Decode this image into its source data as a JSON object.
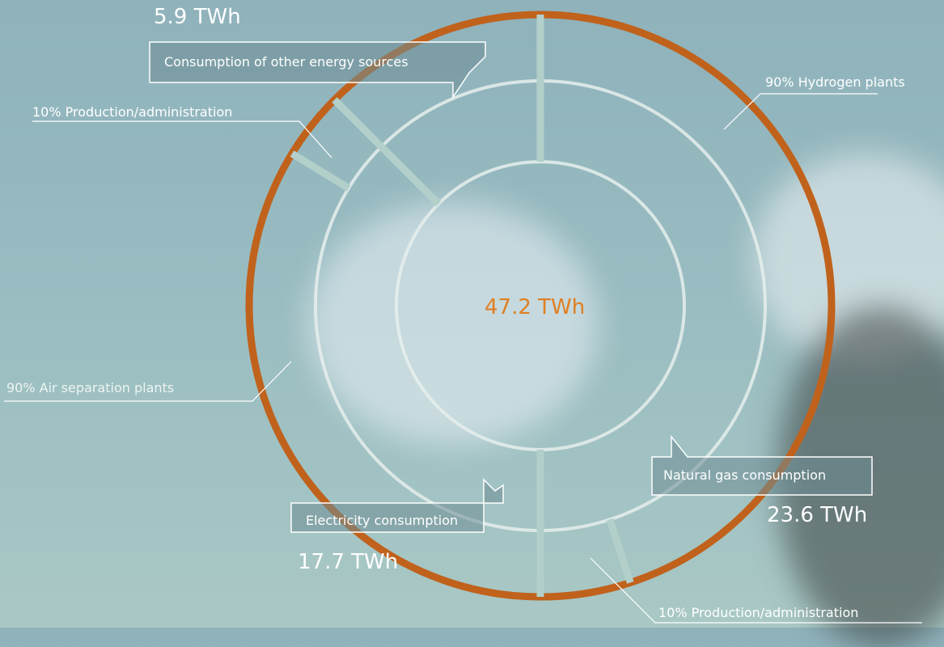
{
  "colors": {
    "outer_ring": "#c0621c",
    "inner_ring": "#e6efec",
    "divider": "#b3cfca",
    "accent_text": "#e07f22",
    "leader_line": "#ffffff"
  },
  "chart_data": {
    "type": "pie",
    "title": "",
    "total": "47.2 TWh",
    "categories": [
      "Natural gas consumption",
      "Electricity consumption",
      "Consumption of other energy sources"
    ],
    "values": [
      23.6,
      17.7,
      5.9
    ],
    "value_labels": [
      "23.6 TWh",
      "17.7 TWh",
      "5.9 TWh"
    ],
    "sub_breakdown": [
      {
        "parent": "Natural gas consumption",
        "label": "90% Hydrogen plants",
        "percent": 90
      },
      {
        "parent": "Natural gas consumption",
        "label": "10% Production/administration",
        "percent": 10
      },
      {
        "parent": "Electricity consumption",
        "label": "90% Air separation plants",
        "percent": 90
      },
      {
        "parent": "Electricity consumption",
        "label": "10% Production/administration",
        "percent": 10
      }
    ]
  }
}
